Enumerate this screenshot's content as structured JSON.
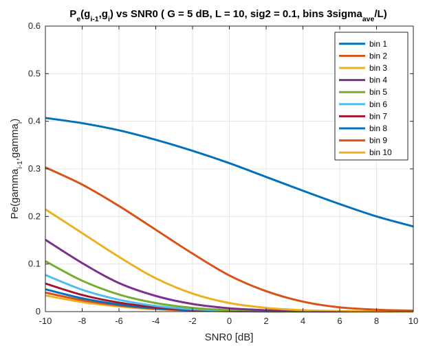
{
  "chart_data": {
    "type": "line",
    "title": {
      "segments": [
        {
          "text": "P",
          "style": "normal"
        },
        {
          "text": "e",
          "style": "sub"
        },
        {
          "text": "(g",
          "style": "normal"
        },
        {
          "text": "i-1",
          "style": "sub"
        },
        {
          "text": ",g",
          "style": "normal"
        },
        {
          "text": "i",
          "style": "sub"
        },
        {
          "text": ") vs SNR0 ( G = 5 dB, L = 10, sig2 = 0.1, bins 3sigma",
          "style": "normal"
        },
        {
          "text": "ave",
          "style": "sub"
        },
        {
          "text": "/L)",
          "style": "normal"
        }
      ]
    },
    "xlabel": "SNR0 [dB]",
    "ylabel": {
      "segments": [
        {
          "text": "Pe(gamma",
          "style": "normal"
        },
        {
          "text": "i-1",
          "style": "sub"
        },
        {
          "text": ",gamma",
          "style": "normal"
        },
        {
          "text": "i",
          "style": "sub"
        },
        {
          "text": ")",
          "style": "normal"
        }
      ]
    },
    "xlim": [
      -10,
      10
    ],
    "ylim": [
      0,
      0.6
    ],
    "xticks": [
      "-10",
      "-8",
      "-6",
      "-4",
      "-2",
      "0",
      "2",
      "4",
      "6",
      "8",
      "10"
    ],
    "yticks": [
      "0",
      "0.1",
      "0.2",
      "0.3",
      "0.4",
      "0.5",
      "0.6"
    ],
    "grid": true,
    "legend_position": "top-right",
    "x": [
      -10,
      -8,
      -6,
      -4,
      -2,
      0,
      2,
      4,
      6,
      8,
      10
    ],
    "series": [
      {
        "name": "bin 1",
        "color": "#0072BD",
        "values": [
          0.407,
          0.396,
          0.381,
          0.361,
          0.338,
          0.312,
          0.283,
          0.254,
          0.226,
          0.2,
          0.179
        ]
      },
      {
        "name": "bin 2",
        "color": "#D95319",
        "values": [
          0.303,
          0.267,
          0.222,
          0.172,
          0.122,
          0.076,
          0.043,
          0.021,
          0.009,
          0.004,
          0.002
        ]
      },
      {
        "name": "bin 3",
        "color": "#EDB120",
        "values": [
          0.215,
          0.165,
          0.115,
          0.07,
          0.038,
          0.018,
          0.008,
          0.003,
          0.001,
          0.0005,
          0.0002
        ]
      },
      {
        "name": "bin 4",
        "color": "#7E2F8E",
        "values": [
          0.151,
          0.102,
          0.06,
          0.033,
          0.016,
          0.007,
          0.003,
          0.001,
          0.0004,
          0.0001,
          0.0
        ]
      },
      {
        "name": "bin 5",
        "color": "#77AC30",
        "values": [
          0.106,
          0.065,
          0.036,
          0.018,
          0.008,
          0.003,
          0.001,
          0.0004,
          0.0001,
          0.0,
          0.0
        ]
      },
      {
        "name": "bin 6",
        "color": "#4DBEEE",
        "values": [
          0.077,
          0.046,
          0.025,
          0.012,
          0.005,
          0.002,
          0.0008,
          0.0003,
          0.0001,
          0.0,
          0.0
        ]
      },
      {
        "name": "bin 7",
        "color": "#A2142F",
        "values": [
          0.059,
          0.035,
          0.019,
          0.009,
          0.004,
          0.0015,
          0.0006,
          0.0002,
          0.0001,
          0.0,
          0.0
        ]
      },
      {
        "name": "bin 8",
        "color": "#0072BD",
        "values": [
          0.047,
          0.028,
          0.015,
          0.007,
          0.003,
          0.0012,
          0.0005,
          0.0002,
          0.0,
          0.0,
          0.0
        ]
      },
      {
        "name": "bin 9",
        "color": "#D95319",
        "values": [
          0.04,
          0.024,
          0.013,
          0.006,
          0.0026,
          0.001,
          0.0004,
          0.0001,
          0.0,
          0.0,
          0.0
        ]
      },
      {
        "name": "bin 10",
        "color": "#EDB120",
        "values": [
          0.034,
          0.02,
          0.011,
          0.005,
          0.0022,
          0.0009,
          0.0003,
          0.0001,
          0.0,
          0.0,
          0.0
        ]
      }
    ]
  }
}
